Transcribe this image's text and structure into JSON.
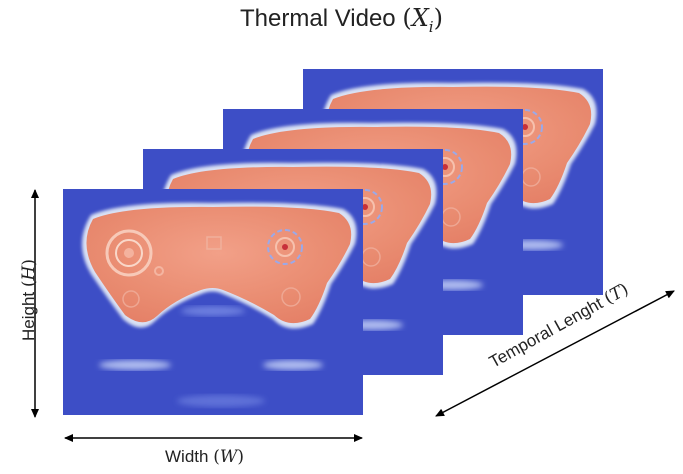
{
  "diagram": {
    "title": {
      "text": "Thermal Video ",
      "open": "(",
      "symbol": "X",
      "subscript": "i",
      "close": ")"
    },
    "width_label": {
      "text": "Width ",
      "open": "(",
      "symbol": "W",
      "close": ")"
    },
    "height_label": {
      "text": "Height ",
      "open": "(",
      "symbol": "H",
      "close": ")"
    },
    "temporal_label": {
      "text": "Temporal Lenght ",
      "open": "(",
      "symbol": "T",
      "close": ")"
    },
    "frame_count": 4,
    "colors": {
      "background_cold": "#3d4ec6",
      "object_warm": "#e98b70",
      "object_edge": "#d9e1f4",
      "arrow": "#000000"
    }
  }
}
